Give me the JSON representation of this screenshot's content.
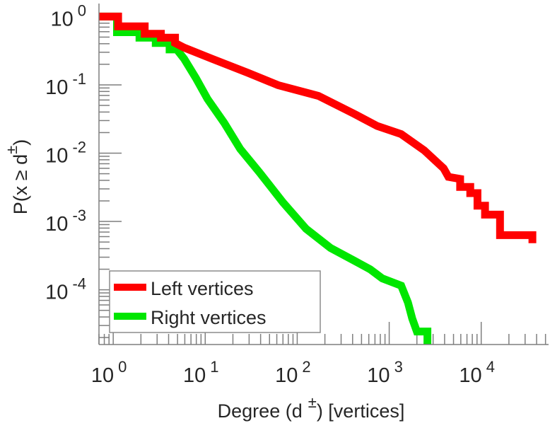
{
  "chart_data": {
    "type": "line",
    "title": "",
    "xlabel": "Degree (d ±) [vertices]",
    "ylabel": "P(x ≥ d±)",
    "xlabel_parts": {
      "pre": "Degree (d",
      "sup": "±",
      "post": ") [vertices]"
    },
    "ylabel_parts": {
      "pre": "P(x ≥ d",
      "sup": "±",
      "post": ")"
    },
    "xscale": "log",
    "yscale": "log",
    "xlim": [
      0.7,
      54000
    ],
    "ylim": [
      1.58e-05,
      1.55
    ],
    "grid": false,
    "legend_position": "bottom-left",
    "x_ticks": [
      {
        "base": "10",
        "exp": "0",
        "value": 1
      },
      {
        "base": "10",
        "exp": "1",
        "value": 10
      },
      {
        "base": "10",
        "exp": "2",
        "value": 100
      },
      {
        "base": "10",
        "exp": "3",
        "value": 1000
      },
      {
        "base": "10",
        "exp": "4",
        "value": 10000
      }
    ],
    "y_ticks": [
      {
        "base": "10",
        "exp": "0",
        "value": 1
      },
      {
        "base": "10",
        "exp": "-1",
        "value": 0.1
      },
      {
        "base": "10",
        "exp": "-2",
        "value": 0.01
      },
      {
        "base": "10",
        "exp": "-3",
        "value": 0.001
      },
      {
        "base": "10",
        "exp": "-4",
        "value": 0.0001
      }
    ],
    "series": [
      {
        "name": "Left vertices",
        "color": "#ff0000",
        "points": [
          [
            0.7,
            1
          ],
          [
            1.13,
            1
          ],
          [
            1.13,
            0.72
          ],
          [
            2.2,
            0.72
          ],
          [
            2.2,
            0.56
          ],
          [
            3.3,
            0.56
          ],
          [
            3.3,
            0.49
          ],
          [
            4.7,
            0.49
          ],
          [
            4.7,
            0.41
          ],
          [
            5.9,
            0.35
          ],
          [
            11.9,
            0.24
          ],
          [
            29,
            0.15
          ],
          [
            62,
            0.099
          ],
          [
            170,
            0.069
          ],
          [
            410,
            0.038
          ],
          [
            740,
            0.025
          ],
          [
            1350,
            0.019
          ],
          [
            2400,
            0.011
          ],
          [
            3900,
            0.006
          ],
          [
            4400,
            0.0045
          ],
          [
            5900,
            0.0042
          ],
          [
            5900,
            0.0032
          ],
          [
            7600,
            0.0032
          ],
          [
            7600,
            0.0026
          ],
          [
            9100,
            0.0026
          ],
          [
            9100,
            0.0017
          ],
          [
            11000,
            0.0017
          ],
          [
            11000,
            0.00126
          ],
          [
            16000,
            0.00126
          ],
          [
            16000,
            0.00063
          ],
          [
            36000,
            0.00063
          ],
          [
            36000,
            0.00048
          ]
        ]
      },
      {
        "name": "Right vertices",
        "color": "#00e600",
        "points": [
          [
            0.7,
            1
          ],
          [
            1.1,
            1
          ],
          [
            1.1,
            0.59
          ],
          [
            1.93,
            0.59
          ],
          [
            1.93,
            0.49
          ],
          [
            2.9,
            0.49
          ],
          [
            2.9,
            0.41
          ],
          [
            4.1,
            0.41
          ],
          [
            4.1,
            0.33
          ],
          [
            4.9,
            0.33
          ],
          [
            5.9,
            0.24
          ],
          [
            7.9,
            0.126
          ],
          [
            10.6,
            0.062
          ],
          [
            16,
            0.028
          ],
          [
            24,
            0.0115
          ],
          [
            39,
            0.0052
          ],
          [
            70,
            0.0019
          ],
          [
            125,
            0.00078
          ],
          [
            230,
            0.00041
          ],
          [
            410,
            0.00027
          ],
          [
            620,
            0.0002
          ],
          [
            840,
            0.000147
          ],
          [
            1350,
            0.000115
          ],
          [
            1600,
            6.5e-05
          ],
          [
            1780,
            3.8e-05
          ],
          [
            2000,
            2.45e-05
          ],
          [
            2600,
            2.45e-05
          ],
          [
            2600,
            1.2e-05
          ]
        ]
      }
    ]
  }
}
